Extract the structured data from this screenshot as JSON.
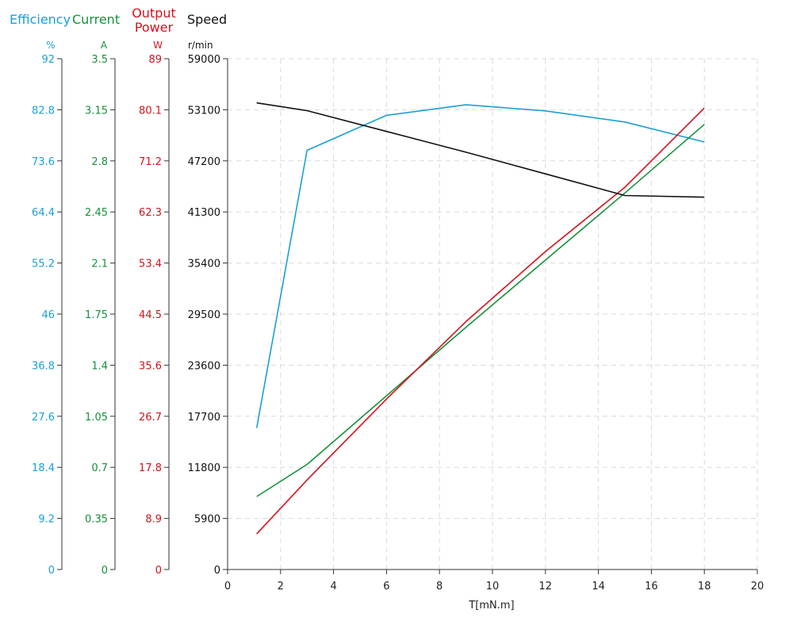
{
  "chart_data": {
    "type": "line",
    "colors": {
      "efficiency": "#1a9fd6",
      "current": "#16913a",
      "output_power": "#d3131e",
      "speed": "#111111",
      "grid": "#d9d9d9"
    },
    "headers": {
      "efficiency": "Efficiency",
      "current": "Current",
      "output_power_1": "Output",
      "output_power_2": "Power",
      "speed": "Speed"
    },
    "axes": {
      "efficiency": {
        "unit": "%",
        "ticks": [
          "0",
          "9.2",
          "18.4",
          "27.6",
          "36.8",
          "46",
          "55.2",
          "64.4",
          "73.6",
          "82.8",
          "92"
        ],
        "ylim": [
          0,
          92
        ]
      },
      "current": {
        "unit": "A",
        "ticks": [
          "0",
          "0.35",
          "0.7",
          "1.05",
          "1.4",
          "1.75",
          "2.1",
          "2.45",
          "2.8",
          "3.15",
          "3.5"
        ],
        "ylim": [
          0,
          3.5
        ]
      },
      "output_power": {
        "unit": "W",
        "ticks": [
          "0",
          "8.9",
          "17.8",
          "26.7",
          "35.6",
          "44.5",
          "53.4",
          "62.3",
          "71.2",
          "80.1",
          "89"
        ],
        "ylim": [
          0,
          89
        ]
      },
      "speed": {
        "unit": "r/min",
        "ticks": [
          "0",
          "5900",
          "11800",
          "17700",
          "23600",
          "29500",
          "35400",
          "41300",
          "47200",
          "53100",
          "59000"
        ],
        "ylim": [
          0,
          59000
        ]
      }
    },
    "xaxis": {
      "label": "T[mN.m]",
      "ticks": [
        "0",
        "2",
        "4",
        "6",
        "8",
        "10",
        "12",
        "14",
        "16",
        "18",
        "20"
      ],
      "xlim": [
        0,
        20
      ]
    },
    "grid": true,
    "series": [
      {
        "key": "efficiency",
        "axis": "efficiency",
        "x": [
          1.1,
          3,
          6,
          9,
          12,
          15,
          18
        ],
        "y": [
          25.5,
          75.5,
          81.8,
          83.7,
          82.6,
          80.6,
          77
        ]
      },
      {
        "key": "current",
        "axis": "current",
        "x": [
          1.1,
          3,
          6,
          9,
          12,
          15,
          18
        ],
        "y": [
          0.5,
          0.72,
          1.19,
          1.66,
          2.12,
          2.58,
          3.05
        ]
      },
      {
        "key": "output_power",
        "axis": "output_power",
        "x": [
          1.1,
          3,
          6,
          9,
          12,
          15,
          18
        ],
        "y": [
          6.2,
          15.6,
          29.7,
          43.2,
          55.4,
          66.6,
          80.4
        ]
      },
      {
        "key": "speed",
        "axis": "speed",
        "x": [
          1.1,
          3,
          6,
          9,
          12,
          15,
          18
        ],
        "y": [
          53900,
          53000,
          50600,
          48200,
          45700,
          43200,
          43000
        ]
      }
    ]
  }
}
